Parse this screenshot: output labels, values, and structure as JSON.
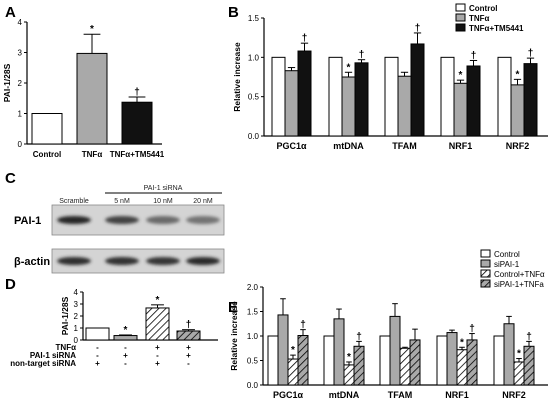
{
  "panels": {
    "A": "A",
    "B": "B",
    "C": "C",
    "D": "D",
    "E": "E"
  },
  "chart_data": [
    {
      "panel": "A",
      "type": "bar",
      "ylabel": "PAI-1/28S",
      "ylim": [
        0,
        4
      ],
      "yticks": [
        0,
        1,
        2,
        3,
        4
      ],
      "categories": [
        "Control",
        "TNFα",
        "TNFα+TM5441"
      ],
      "values": [
        1.0,
        2.97,
        1.37
      ],
      "errors": [
        0,
        0.63,
        0.17
      ],
      "fills": [
        "#ffffff",
        "#a9a9a9",
        "#111111"
      ],
      "markers": [
        "",
        "*",
        "†"
      ]
    },
    {
      "panel": "B",
      "type": "bar",
      "ylabel": "Relative increase",
      "ylim": [
        0,
        1.5
      ],
      "yticks": [
        "0.0",
        "0.5",
        "1.0",
        "1.5"
      ],
      "categories": [
        "PGC1α",
        "mtDNA",
        "TFAM",
        "NRF1",
        "NRF2"
      ],
      "legend": [
        "Control",
        "TNFα",
        "TNFα+TM5441"
      ],
      "colors": [
        "#ffffff",
        "#a9a9a9",
        "#111111"
      ],
      "series": [
        {
          "values": [
            1.0,
            1.0,
            1.0,
            1.0,
            1.0
          ],
          "errors": [
            0,
            0,
            0,
            0,
            0
          ],
          "markers": [
            "",
            "",
            "",
            "",
            ""
          ]
        },
        {
          "values": [
            0.83,
            0.75,
            0.76,
            0.67,
            0.65
          ],
          "errors": [
            0.04,
            0.06,
            0.05,
            0.04,
            0.07
          ],
          "markers": [
            "",
            "*",
            "",
            "*",
            "*"
          ]
        },
        {
          "values": [
            1.08,
            0.93,
            1.17,
            0.89,
            0.92
          ],
          "errors": [
            0.1,
            0.04,
            0.14,
            0.07,
            0.07
          ],
          "markers": [
            "†",
            "†",
            "†",
            "†",
            "†"
          ]
        }
      ]
    },
    {
      "panel": "D",
      "type": "bar",
      "ylabel": "PAI-1/28S",
      "ylim": [
        0,
        4
      ],
      "yticks": [
        0,
        1,
        2,
        3,
        4
      ],
      "values": [
        1.0,
        0.37,
        2.67,
        0.75
      ],
      "errors": [
        0,
        0.05,
        0.26,
        0.11
      ],
      "fills": [
        "#ffffff",
        "#a9a9a9",
        "hatch",
        "hatch-grey"
      ],
      "markers": [
        "",
        "*",
        "*",
        "†"
      ],
      "condition_rows": [
        {
          "label": "TNFα",
          "signs": [
            "-",
            "-",
            "+",
            "+"
          ]
        },
        {
          "label": "PAI-1 siRNA",
          "signs": [
            "-",
            "+",
            "-",
            "+"
          ]
        },
        {
          "label": "non-target siRNA",
          "signs": [
            "+",
            "-",
            "+",
            "-"
          ]
        }
      ]
    },
    {
      "panel": "E",
      "type": "bar",
      "ylabel": "Relative increase",
      "ylim": [
        0,
        2.0
      ],
      "yticks": [
        "0.0",
        "0.5",
        "1.0",
        "1.5",
        "2.0"
      ],
      "categories": [
        "PGC1α",
        "mtDNA",
        "TFAM",
        "NRF1",
        "NRF2"
      ],
      "legend": [
        "Control",
        "siPAI-1",
        "Control+TNFα",
        "siPAI-1+TNFa"
      ],
      "series": [
        {
          "values": [
            1.0,
            1.0,
            1.0,
            1.0,
            1.0
          ],
          "errors": [
            0,
            0,
            0,
            0,
            0
          ],
          "markers": [
            "",
            "",
            "",
            "",
            ""
          ]
        },
        {
          "values": [
            1.43,
            1.35,
            1.4,
            1.07,
            1.25
          ],
          "errors": [
            0.33,
            0.2,
            0.26,
            0.05,
            0.15
          ],
          "markers": [
            "",
            "",
            "",
            "",
            ""
          ]
        },
        {
          "values": [
            0.53,
            0.41,
            0.75,
            0.72,
            0.47
          ],
          "errors": [
            0.08,
            0.06,
            0.02,
            0.05,
            0.07
          ],
          "markers": [
            "*",
            "*",
            "",
            "*",
            "*"
          ]
        },
        {
          "values": [
            1.01,
            0.79,
            0.92,
            0.92,
            0.79
          ],
          "errors": [
            0.12,
            0.1,
            0.22,
            0.13,
            0.1
          ],
          "markers": [
            "†",
            "†",
            "",
            "†",
            "†"
          ]
        }
      ]
    }
  ],
  "blot": {
    "group_label": "PAI-1 siRNA",
    "lanes": [
      "Scramble",
      "5 nM",
      "10 nM",
      "20 nM"
    ],
    "rows": [
      "PAI-1",
      "β-actin"
    ],
    "intensity": {
      "PAI-1": [
        0.95,
        0.78,
        0.55,
        0.5
      ],
      "β-actin": [
        0.9,
        0.88,
        0.87,
        0.92
      ]
    }
  }
}
